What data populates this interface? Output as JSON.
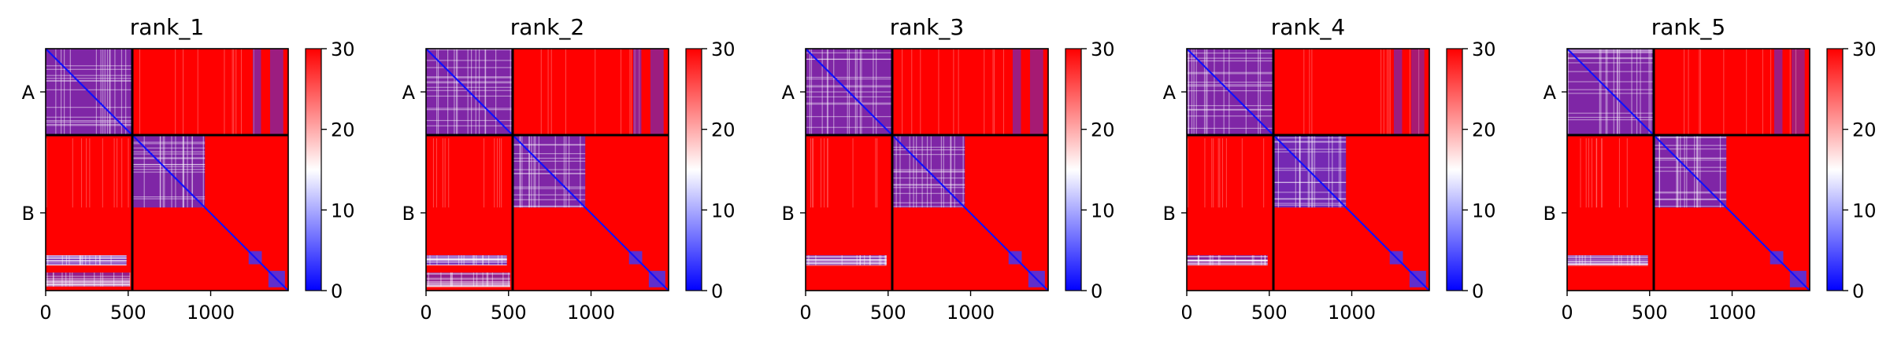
{
  "chart_data": [
    {
      "type": "heatmap",
      "title": "rank_1",
      "chains": [
        "A",
        "B"
      ],
      "chain_length_a": 525,
      "total_length": 1470,
      "x_ticks": [
        0,
        500,
        1000
      ],
      "y_tick_labels": [
        "A",
        "B"
      ],
      "colorbar": {
        "min": 0,
        "max": 30,
        "ticks": [
          0,
          10,
          20,
          30
        ],
        "colors": [
          "#0000ff",
          "#ffffff",
          "#ff0000"
        ]
      },
      "low_error_regions": [
        [
          0,
          525,
          0,
          525,
          0.65
        ],
        [
          525,
          965,
          525,
          965,
          0.65
        ],
        [
          1230,
          1310,
          1230,
          1310,
          0.8
        ],
        [
          1350,
          1450,
          1350,
          1450,
          0.8
        ],
        [
          0,
          490,
          1255,
          1315,
          0.7
        ],
        [
          0,
          510,
          1360,
          1445,
          0.55
        ],
        [
          1255,
          1305,
          0,
          525,
          0.55
        ],
        [
          1360,
          1440,
          0,
          525,
          0.5
        ]
      ]
    },
    {
      "type": "heatmap",
      "title": "rank_2",
      "chains": [
        "A",
        "B"
      ],
      "chain_length_a": 525,
      "total_length": 1470,
      "x_ticks": [
        0,
        500,
        1000
      ],
      "y_tick_labels": [
        "A",
        "B"
      ],
      "colorbar": {
        "min": 0,
        "max": 30,
        "ticks": [
          0,
          10,
          20,
          30
        ],
        "colors": [
          "#0000ff",
          "#ffffff",
          "#ff0000"
        ]
      },
      "low_error_regions": [
        [
          0,
          525,
          0,
          525,
          0.65
        ],
        [
          525,
          965,
          525,
          965,
          0.65
        ],
        [
          1230,
          1310,
          1230,
          1310,
          0.8
        ],
        [
          1350,
          1450,
          1350,
          1450,
          0.8
        ],
        [
          0,
          490,
          1255,
          1315,
          0.7
        ],
        [
          0,
          510,
          1360,
          1445,
          0.55
        ],
        [
          1255,
          1305,
          0,
          525,
          0.55
        ],
        [
          1360,
          1440,
          0,
          525,
          0.5
        ]
      ]
    },
    {
      "type": "heatmap",
      "title": "rank_3",
      "chains": [
        "A",
        "B"
      ],
      "chain_length_a": 525,
      "total_length": 1470,
      "x_ticks": [
        0,
        500,
        1000
      ],
      "y_tick_labels": [
        "A",
        "B"
      ],
      "colorbar": {
        "min": 0,
        "max": 30,
        "ticks": [
          0,
          10,
          20,
          30
        ],
        "colors": [
          "#0000ff",
          "#ffffff",
          "#ff0000"
        ]
      },
      "low_error_regions": [
        [
          0,
          525,
          0,
          525,
          0.65
        ],
        [
          525,
          965,
          525,
          965,
          0.65
        ],
        [
          1230,
          1310,
          1230,
          1310,
          0.8
        ],
        [
          1350,
          1450,
          1350,
          1450,
          0.8
        ],
        [
          0,
          490,
          1255,
          1315,
          0.65
        ],
        [
          1255,
          1305,
          0,
          525,
          0.5
        ],
        [
          1360,
          1440,
          0,
          525,
          0.45
        ]
      ]
    },
    {
      "type": "heatmap",
      "title": "rank_4",
      "chains": [
        "A",
        "B"
      ],
      "chain_length_a": 525,
      "total_length": 1470,
      "x_ticks": [
        0,
        500,
        1000
      ],
      "y_tick_labels": [
        "A",
        "B"
      ],
      "colorbar": {
        "min": 0,
        "max": 30,
        "ticks": [
          0,
          10,
          20,
          30
        ],
        "colors": [
          "#0000ff",
          "#ffffff",
          "#ff0000"
        ]
      },
      "low_error_regions": [
        [
          0,
          525,
          0,
          525,
          0.65
        ],
        [
          525,
          965,
          525,
          965,
          0.7
        ],
        [
          1230,
          1310,
          1230,
          1310,
          0.8
        ],
        [
          1350,
          1450,
          1350,
          1450,
          0.8
        ],
        [
          0,
          490,
          1255,
          1315,
          0.6
        ],
        [
          1255,
          1305,
          0,
          525,
          0.5
        ],
        [
          1360,
          1440,
          0,
          525,
          0.45
        ]
      ]
    },
    {
      "type": "heatmap",
      "title": "rank_5",
      "chains": [
        "A",
        "B"
      ],
      "chain_length_a": 525,
      "total_length": 1470,
      "x_ticks": [
        0,
        500,
        1000
      ],
      "y_tick_labels": [
        "A",
        "B"
      ],
      "colorbar": {
        "min": 0,
        "max": 30,
        "ticks": [
          0,
          10,
          20,
          30
        ],
        "colors": [
          "#0000ff",
          "#ffffff",
          "#ff0000"
        ]
      },
      "low_error_regions": [
        [
          0,
          525,
          0,
          525,
          0.65
        ],
        [
          525,
          965,
          525,
          965,
          0.65
        ],
        [
          1230,
          1310,
          1230,
          1310,
          0.8
        ],
        [
          1350,
          1450,
          1350,
          1450,
          0.8
        ],
        [
          0,
          490,
          1255,
          1315,
          0.65
        ],
        [
          1255,
          1305,
          0,
          525,
          0.5
        ],
        [
          1360,
          1440,
          0,
          525,
          0.45
        ]
      ]
    }
  ]
}
